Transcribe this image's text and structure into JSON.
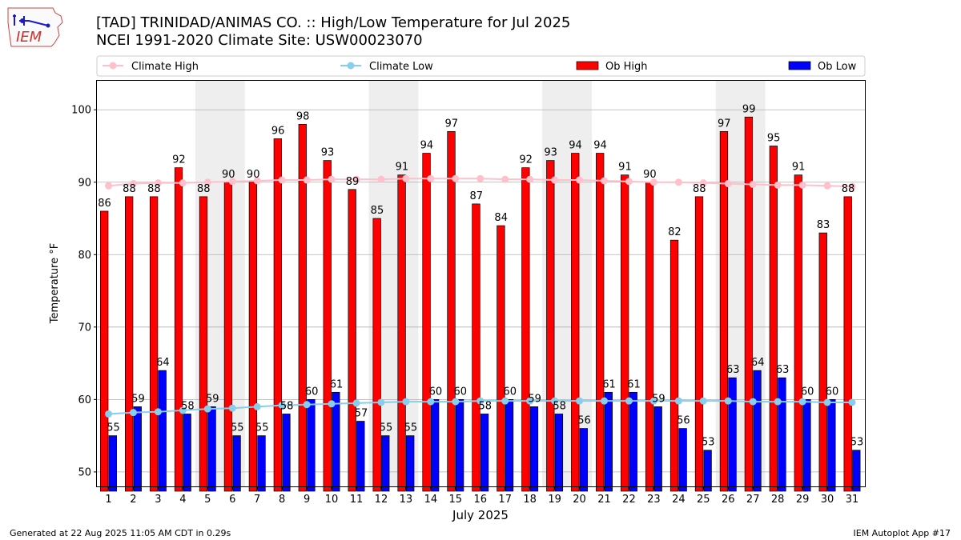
{
  "header": {
    "title_line1": "[TAD] TRINIDAD/ANIMAS CO. :: High/Low Temperature for Jul 2025",
    "title_line2": "NCEI 1991-2020 Climate Site: USW00023070"
  },
  "logo": {
    "text": "IEM"
  },
  "footer": {
    "left": "Generated at 22 Aug 2025 11:05 AM CDT in 0.29s",
    "right": "IEM Autoplot App #17"
  },
  "colors": {
    "ob_high": "#ff0000",
    "ob_low": "#0000ff",
    "climate_high": "#ffc0cb",
    "climate_low": "#87ceeb",
    "weekend_shade": "#eeeeee",
    "grid": "#b0b0b0"
  },
  "chart_data": {
    "type": "bar",
    "title": "[TAD] TRINIDAD/ANIMAS CO. :: High/Low Temperature for Jul 2025",
    "xlabel": "July 2025",
    "ylabel": "Temperature °F",
    "ylim": [
      48,
      104
    ],
    "yticks": [
      50,
      60,
      70,
      80,
      90,
      100
    ],
    "grid": "y",
    "legend": [
      "Climate High",
      "Climate Low",
      "Ob High",
      "Ob Low"
    ],
    "legend_position": "top",
    "categories": [
      "1",
      "2",
      "3",
      "4",
      "5",
      "6",
      "7",
      "8",
      "9",
      "10",
      "11",
      "12",
      "13",
      "14",
      "15",
      "16",
      "17",
      "18",
      "19",
      "20",
      "21",
      "22",
      "23",
      "24",
      "25",
      "26",
      "27",
      "28",
      "29",
      "30",
      "31"
    ],
    "shaded_days": [
      [
        5,
        6
      ],
      [
        12,
        13
      ],
      [
        19,
        20
      ],
      [
        26,
        27
      ]
    ],
    "series": [
      {
        "name": "Ob High",
        "kind": "bar",
        "values": [
          86,
          88,
          88,
          92,
          88,
          90,
          90,
          96,
          98,
          93,
          89,
          85,
          91,
          94,
          97,
          87,
          84,
          92,
          93,
          94,
          94,
          91,
          90,
          82,
          88,
          97,
          99,
          95,
          91,
          83,
          88
        ]
      },
      {
        "name": "Ob Low",
        "kind": "bar",
        "values": [
          55,
          59,
          64,
          58,
          59,
          55,
          55,
          58,
          60,
          61,
          57,
          55,
          55,
          60,
          60,
          58,
          60,
          59,
          58,
          56,
          61,
          61,
          59,
          56,
          53,
          63,
          64,
          63,
          60,
          60,
          53
        ]
      },
      {
        "name": "Climate High",
        "kind": "line",
        "values": [
          89.5,
          89.8,
          89.9,
          89.9,
          90.0,
          90.1,
          90.2,
          90.3,
          90.3,
          90.4,
          90.4,
          90.4,
          90.5,
          90.5,
          90.5,
          90.5,
          90.4,
          90.4,
          90.3,
          90.3,
          90.2,
          90.1,
          90.0,
          90.0,
          89.9,
          89.8,
          89.7,
          89.6,
          89.6,
          89.5,
          89.4
        ]
      },
      {
        "name": "Climate Low",
        "kind": "line",
        "values": [
          58.0,
          58.2,
          58.3,
          58.5,
          58.7,
          58.8,
          59.0,
          59.2,
          59.3,
          59.4,
          59.5,
          59.6,
          59.7,
          59.7,
          59.7,
          59.8,
          59.8,
          59.8,
          59.8,
          59.8,
          59.8,
          59.8,
          59.8,
          59.8,
          59.8,
          59.8,
          59.7,
          59.7,
          59.7,
          59.6,
          59.6
        ]
      }
    ]
  }
}
